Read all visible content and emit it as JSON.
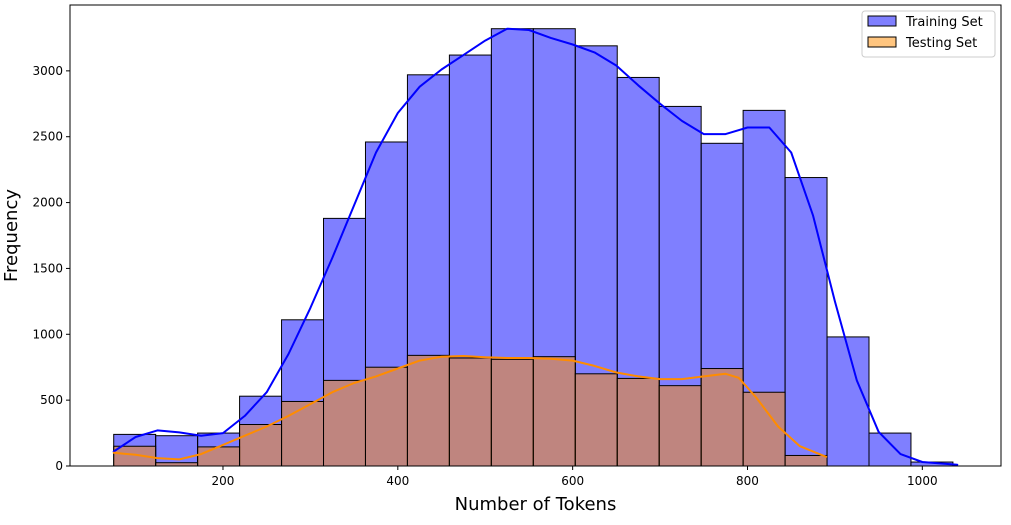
{
  "chart_data": {
    "type": "bar",
    "title": "",
    "xlabel": "Number of Tokens",
    "ylabel": "Frequency",
    "xlim": [
      25,
      1090
    ],
    "ylim": [
      0,
      3500
    ],
    "x_ticks": [
      200,
      400,
      600,
      800,
      1000
    ],
    "y_ticks": [
      0,
      500,
      1000,
      1500,
      2000,
      2500,
      3000
    ],
    "grid": false,
    "legend_position": "top-right",
    "series": [
      {
        "name": "Training Set",
        "color": "#0000ff",
        "fill": "#8080ff",
        "bins": [
          {
            "x0": 75,
            "x1": 123,
            "count": 240
          },
          {
            "x0": 123,
            "x1": 171,
            "count": 230
          },
          {
            "x0": 171,
            "x1": 219,
            "count": 250
          },
          {
            "x0": 219,
            "x1": 267,
            "count": 530
          },
          {
            "x0": 267,
            "x1": 315,
            "count": 1110
          },
          {
            "x0": 315,
            "x1": 363,
            "count": 1880
          },
          {
            "x0": 363,
            "x1": 411,
            "count": 2460
          },
          {
            "x0": 411,
            "x1": 459,
            "count": 2970
          },
          {
            "x0": 459,
            "x1": 507,
            "count": 3120
          },
          {
            "x0": 507,
            "x1": 555,
            "count": 3320
          },
          {
            "x0": 555,
            "x1": 603,
            "count": 3320
          },
          {
            "x0": 603,
            "x1": 651,
            "count": 3190
          },
          {
            "x0": 651,
            "x1": 699,
            "count": 2950
          },
          {
            "x0": 699,
            "x1": 747,
            "count": 2730
          },
          {
            "x0": 747,
            "x1": 795,
            "count": 2450
          },
          {
            "x0": 795,
            "x1": 843,
            "count": 2700
          },
          {
            "x0": 843,
            "x1": 891,
            "count": 2190
          },
          {
            "x0": 891,
            "x1": 939,
            "count": 980
          },
          {
            "x0": 939,
            "x1": 987,
            "count": 250
          },
          {
            "x0": 987,
            "x1": 1035,
            "count": 30
          }
        ],
        "kde": [
          {
            "x": 75,
            "y": 110
          },
          {
            "x": 100,
            "y": 220
          },
          {
            "x": 125,
            "y": 270
          },
          {
            "x": 150,
            "y": 255
          },
          {
            "x": 175,
            "y": 230
          },
          {
            "x": 200,
            "y": 250
          },
          {
            "x": 225,
            "y": 380
          },
          {
            "x": 250,
            "y": 560
          },
          {
            "x": 275,
            "y": 850
          },
          {
            "x": 300,
            "y": 1200
          },
          {
            "x": 325,
            "y": 1580
          },
          {
            "x": 350,
            "y": 1980
          },
          {
            "x": 375,
            "y": 2380
          },
          {
            "x": 400,
            "y": 2680
          },
          {
            "x": 425,
            "y": 2880
          },
          {
            "x": 450,
            "y": 3010
          },
          {
            "x": 475,
            "y": 3120
          },
          {
            "x": 500,
            "y": 3230
          },
          {
            "x": 525,
            "y": 3320
          },
          {
            "x": 550,
            "y": 3310
          },
          {
            "x": 575,
            "y": 3250
          },
          {
            "x": 600,
            "y": 3200
          },
          {
            "x": 625,
            "y": 3140
          },
          {
            "x": 650,
            "y": 3040
          },
          {
            "x": 675,
            "y": 2890
          },
          {
            "x": 700,
            "y": 2750
          },
          {
            "x": 725,
            "y": 2620
          },
          {
            "x": 750,
            "y": 2520
          },
          {
            "x": 775,
            "y": 2520
          },
          {
            "x": 800,
            "y": 2570
          },
          {
            "x": 825,
            "y": 2570
          },
          {
            "x": 850,
            "y": 2380
          },
          {
            "x": 875,
            "y": 1900
          },
          {
            "x": 900,
            "y": 1250
          },
          {
            "x": 925,
            "y": 650
          },
          {
            "x": 950,
            "y": 260
          },
          {
            "x": 975,
            "y": 90
          },
          {
            "x": 1000,
            "y": 30
          },
          {
            "x": 1040,
            "y": 10
          }
        ]
      },
      {
        "name": "Testing Set",
        "color": "#ff8c00",
        "fill": "#ffb347",
        "bins": [
          {
            "x0": 75,
            "x1": 123,
            "count": 150
          },
          {
            "x0": 123,
            "x1": 171,
            "count": 25
          },
          {
            "x0": 171,
            "x1": 219,
            "count": 145
          },
          {
            "x0": 219,
            "x1": 267,
            "count": 315
          },
          {
            "x0": 267,
            "x1": 315,
            "count": 490
          },
          {
            "x0": 315,
            "x1": 363,
            "count": 650
          },
          {
            "x0": 363,
            "x1": 411,
            "count": 750
          },
          {
            "x0": 411,
            "x1": 459,
            "count": 840
          },
          {
            "x0": 459,
            "x1": 507,
            "count": 820
          },
          {
            "x0": 507,
            "x1": 555,
            "count": 810
          },
          {
            "x0": 555,
            "x1": 603,
            "count": 830
          },
          {
            "x0": 603,
            "x1": 651,
            "count": 700
          },
          {
            "x0": 651,
            "x1": 699,
            "count": 665
          },
          {
            "x0": 699,
            "x1": 747,
            "count": 610
          },
          {
            "x0": 747,
            "x1": 795,
            "count": 740
          },
          {
            "x0": 795,
            "x1": 843,
            "count": 560
          },
          {
            "x0": 843,
            "x1": 891,
            "count": 80
          }
        ],
        "kde": [
          {
            "x": 75,
            "y": 100
          },
          {
            "x": 100,
            "y": 85
          },
          {
            "x": 125,
            "y": 60
          },
          {
            "x": 150,
            "y": 50
          },
          {
            "x": 175,
            "y": 90
          },
          {
            "x": 200,
            "y": 160
          },
          {
            "x": 225,
            "y": 230
          },
          {
            "x": 250,
            "y": 300
          },
          {
            "x": 275,
            "y": 380
          },
          {
            "x": 300,
            "y": 470
          },
          {
            "x": 325,
            "y": 560
          },
          {
            "x": 350,
            "y": 630
          },
          {
            "x": 375,
            "y": 680
          },
          {
            "x": 400,
            "y": 740
          },
          {
            "x": 425,
            "y": 800
          },
          {
            "x": 450,
            "y": 830
          },
          {
            "x": 475,
            "y": 835
          },
          {
            "x": 500,
            "y": 825
          },
          {
            "x": 525,
            "y": 820
          },
          {
            "x": 550,
            "y": 820
          },
          {
            "x": 575,
            "y": 815
          },
          {
            "x": 600,
            "y": 800
          },
          {
            "x": 625,
            "y": 760
          },
          {
            "x": 650,
            "y": 710
          },
          {
            "x": 675,
            "y": 680
          },
          {
            "x": 700,
            "y": 660
          },
          {
            "x": 725,
            "y": 660
          },
          {
            "x": 750,
            "y": 680
          },
          {
            "x": 775,
            "y": 700
          },
          {
            "x": 790,
            "y": 670
          },
          {
            "x": 810,
            "y": 520
          },
          {
            "x": 835,
            "y": 300
          },
          {
            "x": 860,
            "y": 150
          },
          {
            "x": 890,
            "y": 70
          }
        ]
      }
    ]
  }
}
